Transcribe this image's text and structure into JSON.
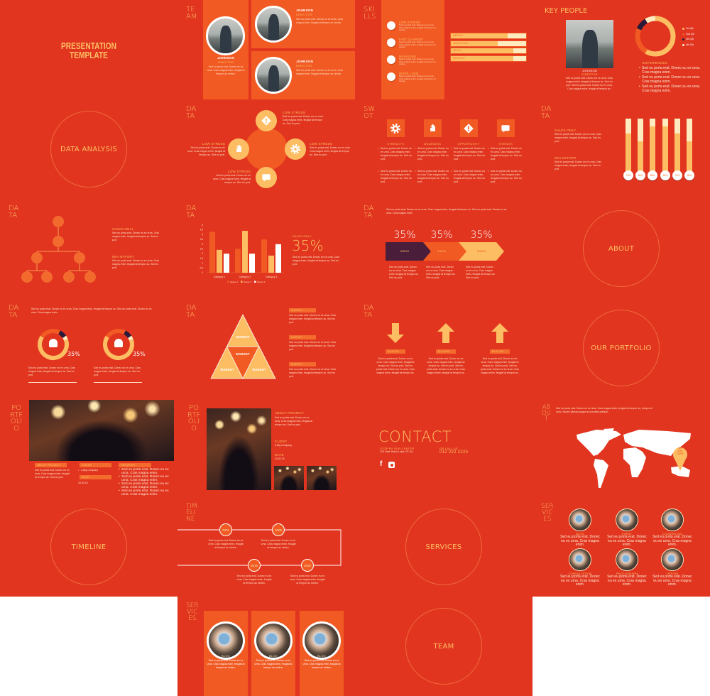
{
  "colors": {
    "background": "#E1351F",
    "panel": "#F15A22",
    "accent": "#FDBE63",
    "cream": "#FEEBC0",
    "navy": "#2A1A3A",
    "arrow_dark": "#4A1D3A"
  },
  "lorem": {
    "a": "Sed eu porta erat. Donec eu ex urna. Cras magna enim, feugiat at tempor ac centra.",
    "b": "Sed eu porta erat. Donec eu ex urna. Cras magna enim, feugiat at tempor ac. Sed eu port.",
    "c": "Sed eu porta erat. Donec eu ex urna. Cras magna enim.",
    "d": "Sed eu porta erat. Donec eu ex urna. Cras magna enim, feugiat at tempor ac. Sed eu port. Sed eu porta erat. Donec eu ex urna. Cras magna enim, feugiat at tempor ac.",
    "e": "Sed eu porta erat. Donec eu ex urna. Cras magna enim, feugiat at tempor ac. Sed eu porta erat. Donec eu ex urna. Cras magna enim.",
    "f": "Sed eu porta erat. Donec eu ex urna. Cras magna enim, feugiat at tempor ac, tempor id nunc. Nunec ultrices augue at convallis pretium."
  },
  "headings": {
    "data": [
      "DA",
      "TA"
    ],
    "team": [
      "TE",
      "AM"
    ],
    "skills": [
      "SKI",
      "LLS"
    ],
    "swot": [
      "SW",
      "OT"
    ],
    "portfolio": [
      "PO",
      "RTF",
      "OLI",
      "O"
    ],
    "timeline": [
      "TIM",
      "ELI",
      "NE"
    ],
    "services": [
      "SER",
      "VIC",
      "ES"
    ],
    "about": [
      "AB",
      "OU",
      "T"
    ]
  },
  "title_slide": {
    "line1": "PRESENTATION",
    "line2": "TEMPLATE"
  },
  "section_titles": {
    "data_analysis": "DATA ANALYSIS",
    "about": "ABOUT",
    "our_portfolio": "OUR PORTFOLIO",
    "timeline": "TIMELINE",
    "services": "SERVICES",
    "team": "TEAM"
  },
  "team": {
    "members": [
      {
        "name": "JOHNSON",
        "role": "DIRECTOR"
      },
      {
        "name": "JOHNSON",
        "role": "DIRECTOR"
      },
      {
        "name": "JOHNSON",
        "role": "DIRECTOR"
      }
    ]
  },
  "skills": {
    "items": [
      "LOW STRESS",
      "FAST LEARNER",
      "MANAGING",
      "WORK LOAD"
    ],
    "bars": [
      {
        "label": "DESIGN",
        "level": 0.75
      },
      {
        "label": "MARKETING",
        "level": 0.62
      },
      {
        "label": "VALUE",
        "level": 0.83
      },
      {
        "label": "PAINTING",
        "level": 0.83
      }
    ]
  },
  "key_people": {
    "title": "KEY PEOPLE",
    "name": "JOHNSON",
    "role": "DIRECTOR",
    "experiences": "EXPERIENCES",
    "donut": {
      "legend": [
        "1st Qtr",
        "2nd Qtr",
        "3rd Qtr",
        "4th Qtr"
      ],
      "values": [
        8.2,
        3.2,
        1.4,
        1.2
      ],
      "colors": [
        "#FDBE63",
        "#F15A22",
        "#2A1A3A",
        "#FEEBC0"
      ]
    }
  },
  "stress": {
    "labels": [
      "LOW STRESS",
      "LOW STRESS",
      "LOW STRESS",
      "LOW STRESS"
    ],
    "icons": [
      "warning-icon",
      "tag-icon",
      "gear-icon",
      "chat-icon"
    ]
  },
  "swot": {
    "items": [
      {
        "label": "STRENGTH",
        "icon": "gear-icon"
      },
      {
        "label": "WEAKNESS",
        "icon": "tag-icon"
      },
      {
        "label": "OPPORTUNITY",
        "icon": "warning-icon"
      },
      {
        "label": "THREATS",
        "icon": "chat-icon"
      }
    ]
  },
  "sales": {
    "sales_only": "SALES ONLY",
    "effort": "90% EFFORT",
    "big_value": "35%"
  },
  "thermometers": [
    {
      "label": "70%",
      "level": 0.72
    },
    {
      "label": "55%",
      "level": 0.57
    },
    {
      "label": "85%",
      "level": 0.85
    },
    {
      "label": "85%",
      "level": 0.85
    },
    {
      "label": "70%",
      "level": 0.72
    },
    {
      "label": "55%",
      "level": 0.57
    }
  ],
  "chart_data": {
    "type": "bar",
    "categories": [
      "Category 1",
      "Category 2",
      "Category 3"
    ],
    "series": [
      {
        "name": "Series 1",
        "values": [
          4.3,
          2.5,
          3.5
        ],
        "color": "#F15A22"
      },
      {
        "name": "Series 2",
        "values": [
          2.4,
          4.4,
          1.8
        ],
        "color": "#FDBE63"
      },
      {
        "name": "Series 3",
        "values": [
          2,
          2,
          3
        ],
        "color": "#FFFFFF"
      }
    ],
    "yticks": [
      "0",
      "0.5",
      "1",
      "1.5",
      "2",
      "2.5",
      "3",
      "3.5",
      "4",
      "4.5",
      "5"
    ],
    "ylim": [
      0,
      5
    ],
    "legend": "bottom",
    "grid": false
  },
  "chevrons": [
    {
      "value": "35%",
      "label": "IDEAS"
    },
    {
      "value": "35%",
      "label": "IDEAS"
    },
    {
      "value": "35%",
      "label": "IDEAS"
    }
  ],
  "people_donuts": [
    {
      "value": "35%"
    },
    {
      "value": "35%"
    }
  ],
  "pyramid": {
    "labels": [
      "MARKET",
      "MARKET",
      "MARKET",
      "MARKET"
    ],
    "side": [
      "MARKET",
      "MARKET",
      "MARKET"
    ]
  },
  "arrows": [
    {
      "dir": "down",
      "label": "$1,00,000"
    },
    {
      "dir": "up",
      "label": "$1,00,000"
    },
    {
      "dir": "up",
      "label": "$1,00,000"
    }
  ],
  "portfolio": {
    "about": "ABOUT PROJECT",
    "client": "CLIENT",
    "client_value": "A Big Company",
    "date": "DATE",
    "date_value": "03.02.15",
    "services": "SERVICES"
  },
  "contact": {
    "title": "CONTACT",
    "stop_label": "STOP BY OUR CENTER",
    "address": "123 Fake Street Lolas, ST, AU",
    "call_label": "OR CALL US",
    "phone": "012 222 2225"
  },
  "map": {
    "pin": [
      "WE",
      "ARE",
      "HERE"
    ]
  },
  "timeline": {
    "years": [
      "2001",
      "2005",
      "2015",
      "2020"
    ]
  },
  "services": {
    "items": [
      "BLOG",
      "EVENT",
      "COUNSELING",
      "CONSULTATION",
      "PHOTOGRAPH",
      "DESIGN"
    ],
    "cards": [
      "BLOG",
      "BLOG",
      "BLOG"
    ]
  }
}
